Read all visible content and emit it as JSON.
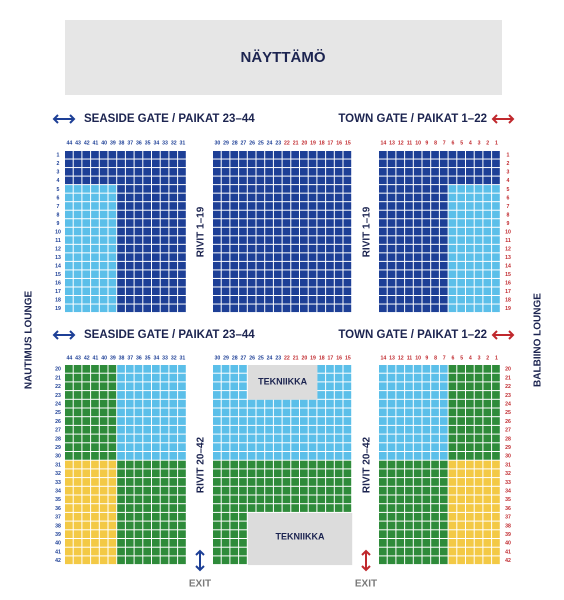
{
  "stage": "NÄYTTÄMÖ",
  "lounges": {
    "left": "NAUTIMUS LOUNGE",
    "right": "BALBIINO LOUNGE"
  },
  "upper": {
    "seaside_gate": "SEASIDE GATE / PAIKAT 23–44",
    "town_gate": "TOWN GATE / PAIKAT 1–22",
    "rows_label_left": "RIVIT 1–19",
    "rows_label_right": "RIVIT 1–19",
    "seats_left": [
      44,
      43,
      42,
      41,
      40,
      39,
      38,
      37,
      36,
      35,
      34,
      33,
      32,
      31
    ],
    "seats_middle": [
      30,
      29,
      28,
      27,
      26,
      25,
      24,
      23,
      22,
      21,
      20,
      19,
      18,
      17,
      16,
      15
    ],
    "seats_right": [
      14,
      13,
      12,
      11,
      10,
      9,
      8,
      7,
      6,
      5,
      4,
      3,
      2,
      1
    ],
    "rows": [
      1,
      2,
      3,
      4,
      5,
      6,
      7,
      8,
      9,
      10,
      11,
      12,
      13,
      14,
      15,
      16,
      17,
      18,
      19
    ]
  },
  "lower": {
    "seaside_gate": "SEASIDE GATE / PAIKAT 23–44",
    "town_gate": "TOWN GATE / PAIKAT 1–22",
    "rows_label_left": "RIVIT 20–42",
    "rows_label_right": "RIVIT 20–42",
    "tekniikka_top": "TEKNIIKKA",
    "tekniikka_bottom": "TEKNIIKKA",
    "exit_left": "EXIT",
    "exit_right": "EXIT",
    "seats_left": [
      44,
      43,
      42,
      41,
      40,
      39,
      38,
      37,
      36,
      35,
      34,
      33,
      32,
      31
    ],
    "seats_middle": [
      30,
      29,
      28,
      27,
      26,
      25,
      24,
      23,
      22,
      21,
      20,
      19,
      18,
      17,
      16,
      15
    ],
    "seats_right": [
      14,
      13,
      12,
      11,
      10,
      9,
      8,
      7,
      6,
      5,
      4,
      3,
      2,
      1
    ],
    "rows": [
      20,
      21,
      22,
      23,
      24,
      25,
      26,
      27,
      28,
      29,
      30,
      31,
      32,
      33,
      34,
      35,
      36,
      37,
      38,
      39,
      40,
      41,
      42
    ]
  }
}
